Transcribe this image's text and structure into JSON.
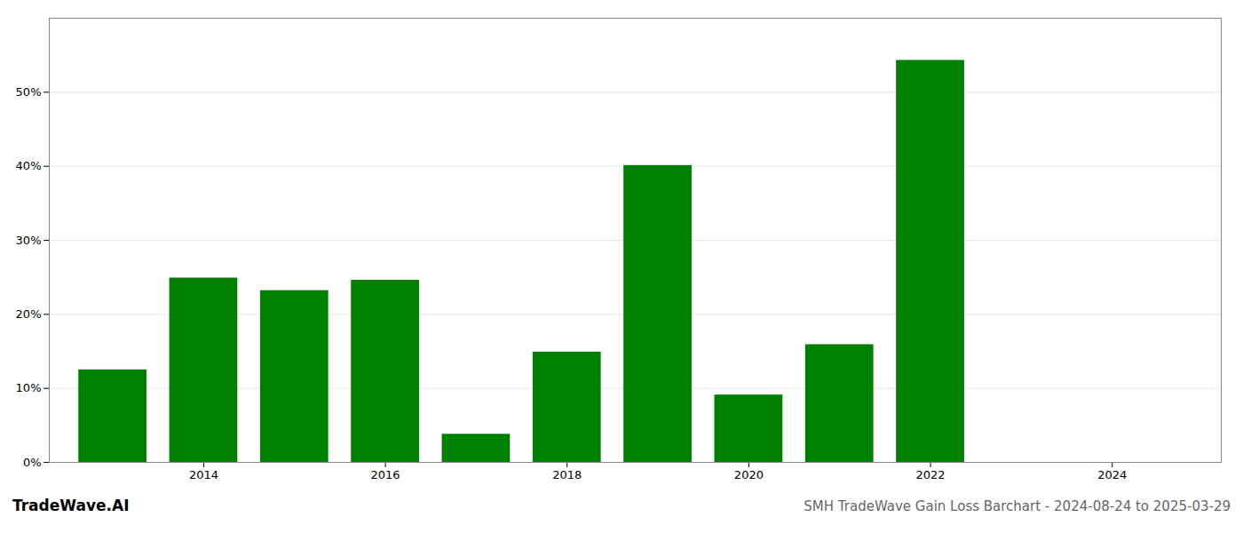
{
  "chart_data": {
    "type": "bar",
    "x": [
      2013,
      2014,
      2015,
      2016,
      2017,
      2018,
      2019,
      2020,
      2021,
      2022,
      2023
    ],
    "values": [
      0.125,
      0.249,
      0.232,
      0.246,
      0.038,
      0.149,
      0.401,
      0.091,
      0.159,
      0.543,
      0.0
    ],
    "color": "#008000",
    "xlim": [
      2012.3,
      2025.2
    ],
    "xticks": [
      2014,
      2016,
      2018,
      2020,
      2022,
      2024
    ],
    "ylim": [
      0,
      0.6
    ],
    "yticks": [
      {
        "value": 0.0,
        "label": "0%"
      },
      {
        "value": 0.1,
        "label": "10%"
      },
      {
        "value": 0.2,
        "label": "20%"
      },
      {
        "value": 0.3,
        "label": "30%"
      },
      {
        "value": 0.4,
        "label": "40%"
      },
      {
        "value": 0.5,
        "label": "50%"
      }
    ],
    "grid": true,
    "annotations": [
      "TradeWave.AI",
      "SMH TradeWave Gain Loss Barchart - 2024-08-24 to 2025-03-29"
    ]
  }
}
